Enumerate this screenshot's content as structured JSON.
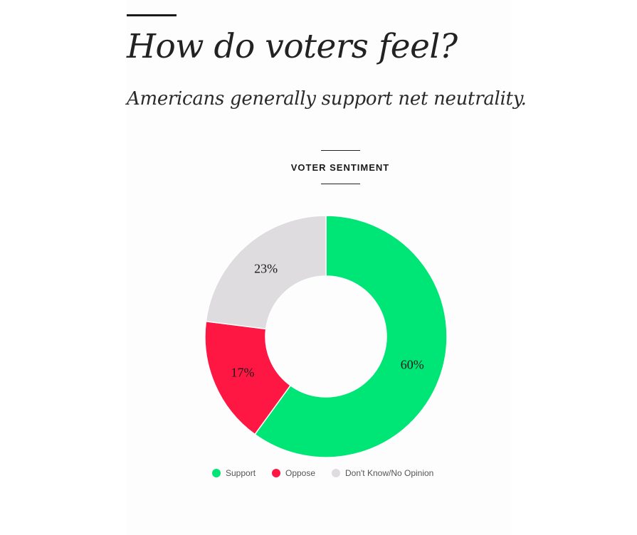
{
  "header": {
    "title": "How do voters feel?",
    "subtitle": "Americans generally support net neutrality."
  },
  "chart_data": {
    "type": "pie",
    "title": "VOTER SENTIMENT",
    "donut": true,
    "categories": [
      "Support",
      "Oppose",
      "Don't Know/No Opinion"
    ],
    "values": [
      60,
      17,
      23
    ],
    "labels": [
      "60%",
      "17%",
      "23%"
    ],
    "colors": [
      "#00e676",
      "#ff1744",
      "#dedcdf"
    ],
    "legend_position": "bottom"
  }
}
